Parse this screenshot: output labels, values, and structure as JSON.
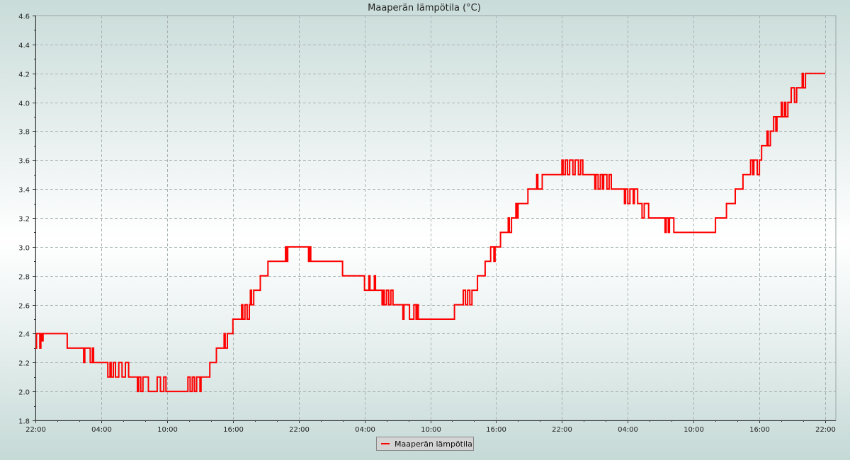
{
  "chart_data": {
    "type": "line",
    "title": "Maaperän lämpötila (°C)",
    "xlabel": "",
    "ylabel": "",
    "x_ticks": [
      "22:00",
      "04:00",
      "10:00",
      "16:00",
      "22:00",
      "04:00",
      "10:00",
      "16:00",
      "22:00",
      "04:00",
      "10:00",
      "16:00",
      "22:00"
    ],
    "x_unit": "hours since first tick",
    "x_range": [
      0,
      72
    ],
    "y_ticks": [
      "1.8",
      "2.0",
      "2.2",
      "2.4",
      "2.6",
      "2.8",
      "3.0",
      "3.2",
      "3.4",
      "3.6",
      "3.8",
      "4.0",
      "4.2",
      "4.4",
      "4.6"
    ],
    "ylim": [
      1.8,
      4.6
    ],
    "grid": true,
    "legend_position": "bottom-center",
    "series": [
      {
        "name": "Maaperän lämpötila",
        "color": "#ff0000",
        "step": true,
        "points": [
          [
            0,
            2.3
          ],
          [
            0.1,
            2.4
          ],
          [
            0.4,
            2.3
          ],
          [
            0.5,
            2.4
          ],
          [
            0.6,
            2.35
          ],
          [
            0.7,
            2.4
          ],
          [
            2.9,
            2.3
          ],
          [
            4.4,
            2.2
          ],
          [
            4.5,
            2.3
          ],
          [
            5.0,
            2.2
          ],
          [
            5.2,
            2.3
          ],
          [
            5.3,
            2.2
          ],
          [
            6.6,
            2.1
          ],
          [
            6.8,
            2.2
          ],
          [
            6.9,
            2.1
          ],
          [
            7.1,
            2.2
          ],
          [
            7.3,
            2.1
          ],
          [
            7.6,
            2.2
          ],
          [
            7.9,
            2.1
          ],
          [
            8.2,
            2.2
          ],
          [
            8.5,
            2.1
          ],
          [
            9.3,
            2.0
          ],
          [
            9.4,
            2.1
          ],
          [
            9.6,
            2.0
          ],
          [
            9.8,
            2.1
          ],
          [
            10.3,
            2.0
          ],
          [
            11.1,
            2.1
          ],
          [
            11.4,
            2.0
          ],
          [
            11.7,
            2.1
          ],
          [
            11.9,
            2.0
          ],
          [
            13.9,
            2.1
          ],
          [
            14.1,
            2.0
          ],
          [
            14.3,
            2.1
          ],
          [
            14.5,
            2.0
          ],
          [
            14.7,
            2.1
          ],
          [
            15.0,
            2.0
          ],
          [
            15.1,
            2.1
          ],
          [
            15.9,
            2.2
          ],
          [
            16.5,
            2.3
          ],
          [
            17.2,
            2.4
          ],
          [
            17.3,
            2.3
          ],
          [
            17.5,
            2.4
          ],
          [
            18.0,
            2.5
          ],
          [
            18.8,
            2.6
          ],
          [
            18.9,
            2.5
          ],
          [
            19.1,
            2.6
          ],
          [
            19.3,
            2.5
          ],
          [
            19.5,
            2.6
          ],
          [
            19.6,
            2.7
          ],
          [
            19.7,
            2.6
          ],
          [
            19.9,
            2.7
          ],
          [
            20.5,
            2.8
          ],
          [
            21.2,
            2.9
          ],
          [
            22.8,
            3.0
          ],
          [
            22.9,
            2.9
          ],
          [
            23.0,
            3.0
          ],
          [
            24.9,
            2.9
          ],
          [
            25.0,
            3.0
          ],
          [
            25.1,
            2.9
          ],
          [
            28.0,
            2.8
          ],
          [
            30.0,
            2.7
          ],
          [
            30.4,
            2.8
          ],
          [
            30.5,
            2.7
          ],
          [
            30.9,
            2.8
          ],
          [
            31.0,
            2.7
          ],
          [
            31.6,
            2.6
          ],
          [
            31.7,
            2.7
          ],
          [
            31.8,
            2.6
          ],
          [
            32.0,
            2.7
          ],
          [
            32.2,
            2.6
          ],
          [
            32.4,
            2.7
          ],
          [
            32.6,
            2.6
          ],
          [
            33.5,
            2.5
          ],
          [
            33.6,
            2.6
          ],
          [
            34.1,
            2.5
          ],
          [
            34.5,
            2.6
          ],
          [
            34.7,
            2.5
          ],
          [
            34.8,
            2.6
          ],
          [
            34.9,
            2.5
          ],
          [
            38.2,
            2.6
          ],
          [
            39.0,
            2.7
          ],
          [
            39.2,
            2.6
          ],
          [
            39.4,
            2.7
          ],
          [
            39.6,
            2.6
          ],
          [
            39.8,
            2.7
          ],
          [
            40.3,
            2.8
          ],
          [
            41.0,
            2.9
          ],
          [
            41.5,
            3.0
          ],
          [
            41.8,
            2.9
          ],
          [
            41.9,
            3.0
          ],
          [
            42.4,
            3.1
          ],
          [
            43.1,
            3.2
          ],
          [
            43.2,
            3.1
          ],
          [
            43.4,
            3.2
          ],
          [
            43.8,
            3.3
          ],
          [
            43.9,
            3.2
          ],
          [
            44.0,
            3.3
          ],
          [
            44.9,
            3.4
          ],
          [
            45.7,
            3.5
          ],
          [
            45.8,
            3.4
          ],
          [
            46.2,
            3.5
          ],
          [
            48.0,
            3.6
          ],
          [
            48.1,
            3.5
          ],
          [
            48.3,
            3.6
          ],
          [
            48.5,
            3.5
          ],
          [
            48.7,
            3.6
          ],
          [
            49.0,
            3.5
          ],
          [
            49.2,
            3.6
          ],
          [
            49.5,
            3.5
          ],
          [
            49.7,
            3.6
          ],
          [
            49.9,
            3.5
          ],
          [
            51.0,
            3.4
          ],
          [
            51.1,
            3.5
          ],
          [
            51.3,
            3.4
          ],
          [
            51.5,
            3.5
          ],
          [
            51.7,
            3.4
          ],
          [
            51.8,
            3.5
          ],
          [
            52.1,
            3.4
          ],
          [
            52.3,
            3.5
          ],
          [
            52.5,
            3.4
          ],
          [
            53.7,
            3.3
          ],
          [
            53.8,
            3.4
          ],
          [
            54.0,
            3.3
          ],
          [
            54.2,
            3.4
          ],
          [
            54.5,
            3.3
          ],
          [
            54.6,
            3.4
          ],
          [
            54.9,
            3.3
          ],
          [
            55.3,
            3.2
          ],
          [
            55.5,
            3.3
          ],
          [
            55.9,
            3.2
          ],
          [
            57.4,
            3.1
          ],
          [
            57.5,
            3.2
          ],
          [
            57.7,
            3.1
          ],
          [
            57.8,
            3.2
          ],
          [
            58.2,
            3.1
          ],
          [
            62.0,
            3.2
          ],
          [
            63.0,
            3.3
          ],
          [
            63.8,
            3.4
          ],
          [
            64.5,
            3.5
          ],
          [
            65.2,
            3.6
          ],
          [
            65.4,
            3.5
          ],
          [
            65.5,
            3.6
          ],
          [
            65.8,
            3.5
          ],
          [
            66.0,
            3.6
          ],
          [
            66.2,
            3.7
          ],
          [
            66.7,
            3.8
          ],
          [
            66.8,
            3.7
          ],
          [
            67.0,
            3.8
          ],
          [
            67.3,
            3.9
          ],
          [
            67.5,
            3.8
          ],
          [
            67.6,
            3.9
          ],
          [
            68.0,
            4.0
          ],
          [
            68.1,
            3.9
          ],
          [
            68.3,
            4.0
          ],
          [
            68.4,
            3.9
          ],
          [
            68.6,
            4.0
          ],
          [
            68.9,
            4.1
          ],
          [
            69.2,
            4.0
          ],
          [
            69.4,
            4.1
          ],
          [
            69.9,
            4.2
          ],
          [
            70.0,
            4.1
          ],
          [
            70.2,
            4.2
          ],
          [
            72.0,
            4.2
          ]
        ]
      }
    ]
  }
}
